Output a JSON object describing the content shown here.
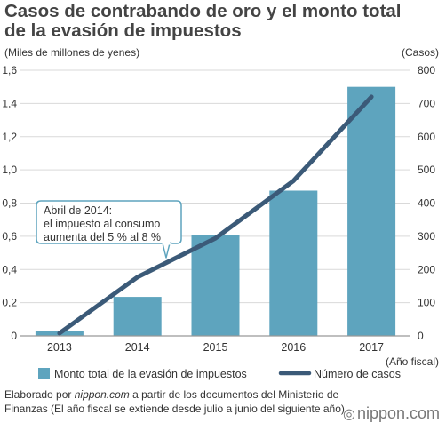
{
  "chart_data": {
    "type": "bar",
    "title_line1": "Casos de contrabando de oro y el monto total",
    "title_line2": "de la evasión de impuestos",
    "categories": [
      "2013",
      "2014",
      "2015",
      "2016",
      "2017"
    ],
    "series": [
      {
        "name": "Monto total de la evasión de impuestos",
        "type": "bar",
        "axis": "left",
        "color": "#5ea4be",
        "values": [
          0.03,
          0.235,
          0.605,
          0.875,
          1.5
        ]
      },
      {
        "name": "Número de casos",
        "type": "line",
        "axis": "right",
        "color": "#3b5a78",
        "values": [
          8,
          177,
          294,
          467,
          720
        ]
      }
    ],
    "left_axis": {
      "label": "(Miles de millones de yenes)",
      "ticks": [
        "0",
        "0,2",
        "0,4",
        "0,6",
        "0,8",
        "1,0",
        "1,2",
        "1,4",
        "1,6"
      ],
      "range": [
        0,
        1.6
      ]
    },
    "right_axis": {
      "label": "(Casos)",
      "ticks": [
        "0",
        "100",
        "200",
        "300",
        "400",
        "500",
        "600",
        "700",
        "800"
      ],
      "range": [
        0,
        800
      ]
    },
    "x_axis_note": "(Año fiscal)",
    "annotation": {
      "lines": [
        "Abril de 2014:",
        "el impuesto al consumo",
        "aumenta del 5 % al 8 %"
      ],
      "category": "2014"
    },
    "grid": true,
    "legend_position": "bottom"
  },
  "source": {
    "text_before": "Elaborado por ",
    "site": "nippon.com",
    "text_after": " a partir de los documentos del Ministerio de Finanzas (El año fiscal se extiende desde julio a junio del siguiente año)."
  },
  "logo": {
    "symbol": "◎",
    "text": "nippon.com"
  }
}
